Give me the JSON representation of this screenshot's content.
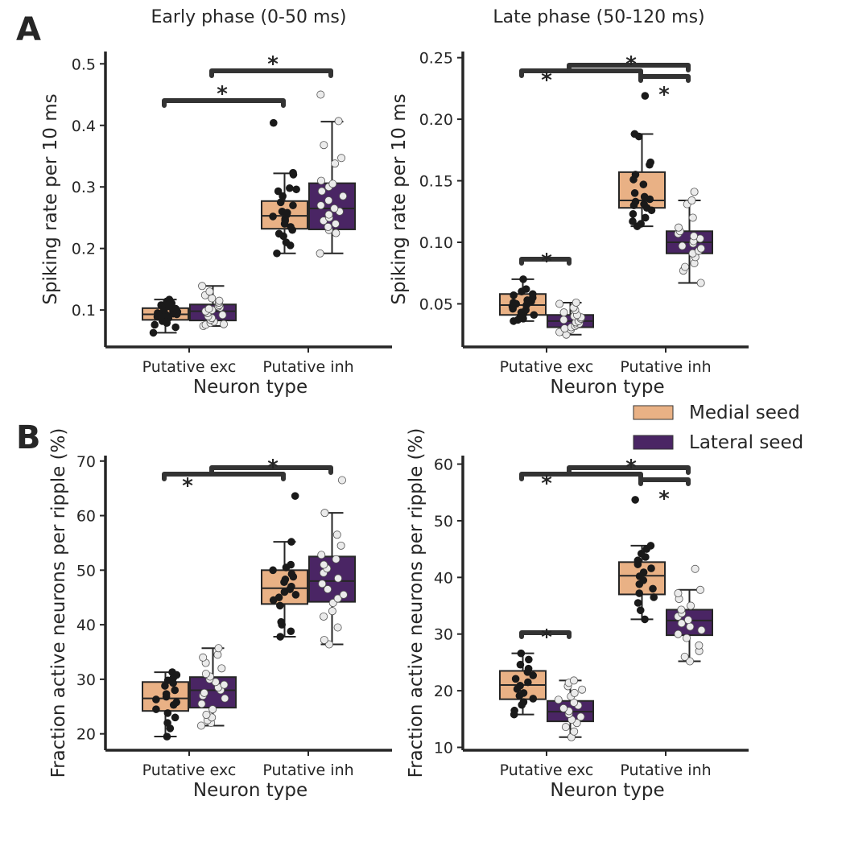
{
  "panel_letters": [
    "A",
    "B"
  ],
  "column_titles": [
    "Early phase (0-50 ms)",
    "Late phase (50-120 ms)"
  ],
  "legend": {
    "items": [
      {
        "label": "Medial seed",
        "color": "#E9B185"
      },
      {
        "label": "Lateral seed",
        "color": "#4A2564"
      }
    ],
    "placement": "right, between rows"
  },
  "colors": {
    "medial": "#E9B185",
    "lateral": "#4A2564",
    "bracket": "#333333"
  },
  "chart_data": [
    {
      "type": "box",
      "title": "Early phase (0-50 ms)",
      "xlabel": "Neuron type",
      "ylabel": "Spiking rate per 10 ms",
      "categories": [
        "Putative exc",
        "Putative inh"
      ],
      "ylim": [
        0.04,
        0.52
      ],
      "yticks": [
        0.1,
        0.2,
        0.3,
        0.4,
        0.5
      ],
      "ytick_labels": [
        "0.1",
        "0.2",
        "0.3",
        "0.4",
        "0.5"
      ],
      "series": [
        {
          "name": "Medial seed",
          "boxes": [
            {
              "whislo": 0.063,
              "q1": 0.084,
              "med": 0.093,
              "q3": 0.103,
              "whishi": 0.117,
              "points": [
                0.063,
                0.072,
                0.076,
                0.079,
                0.082,
                0.085,
                0.087,
                0.089,
                0.09,
                0.092,
                0.093,
                0.094,
                0.095,
                0.097,
                0.098,
                0.1,
                0.102,
                0.104,
                0.106,
                0.108,
                0.111,
                0.114,
                0.117
              ]
            },
            {
              "whislo": 0.192,
              "q1": 0.232,
              "med": 0.253,
              "q3": 0.277,
              "whishi": 0.322,
              "points": [
                0.192,
                0.205,
                0.21,
                0.22,
                0.224,
                0.23,
                0.235,
                0.24,
                0.245,
                0.248,
                0.252,
                0.255,
                0.258,
                0.26,
                0.27,
                0.275,
                0.285,
                0.293,
                0.296,
                0.298,
                0.32,
                0.323,
                0.404
              ]
            }
          ]
        },
        {
          "name": "Lateral seed",
          "boxes": [
            {
              "whislo": 0.074,
              "q1": 0.083,
              "med": 0.098,
              "q3": 0.109,
              "whishi": 0.139,
              "points": [
                0.074,
                0.076,
                0.077,
                0.079,
                0.081,
                0.084,
                0.087,
                0.09,
                0.092,
                0.095,
                0.098,
                0.1,
                0.102,
                0.104,
                0.106,
                0.108,
                0.112,
                0.115,
                0.119,
                0.124,
                0.13,
                0.139
              ]
            },
            {
              "whislo": 0.192,
              "q1": 0.231,
              "med": 0.265,
              "q3": 0.306,
              "whishi": 0.406,
              "points": [
                0.192,
                0.225,
                0.23,
                0.235,
                0.24,
                0.245,
                0.25,
                0.255,
                0.26,
                0.265,
                0.27,
                0.278,
                0.285,
                0.293,
                0.3,
                0.305,
                0.31,
                0.338,
                0.347,
                0.368,
                0.407,
                0.45
              ]
            }
          ]
        }
      ],
      "significance": [
        {
          "pair": "Medial exc vs Medial inh",
          "label": "*"
        },
        {
          "pair": "Lateral exc vs Lateral inh",
          "label": "*"
        }
      ]
    },
    {
      "type": "box",
      "title": "Late phase (50-120 ms)",
      "xlabel": "Neuron type",
      "ylabel": "Spiking rate per 10 ms",
      "categories": [
        "Putative exc",
        "Putative inh"
      ],
      "ylim": [
        0.015,
        0.255
      ],
      "yticks": [
        0.05,
        0.1,
        0.15,
        0.2,
        0.25
      ],
      "ytick_labels": [
        "0.05",
        "0.10",
        "0.15",
        "0.20",
        "0.25"
      ],
      "series": [
        {
          "name": "Medial seed",
          "boxes": [
            {
              "whislo": 0.036,
              "q1": 0.041,
              "med": 0.049,
              "q3": 0.058,
              "whishi": 0.07,
              "points": [
                0.036,
                0.037,
                0.038,
                0.04,
                0.041,
                0.042,
                0.043,
                0.045,
                0.046,
                0.047,
                0.048,
                0.049,
                0.05,
                0.051,
                0.052,
                0.053,
                0.055,
                0.057,
                0.058,
                0.06,
                0.062,
                0.07
              ]
            },
            {
              "whislo": 0.113,
              "q1": 0.128,
              "med": 0.134,
              "q3": 0.157,
              "whishi": 0.188,
              "points": [
                0.113,
                0.115,
                0.117,
                0.12,
                0.123,
                0.126,
                0.128,
                0.13,
                0.131,
                0.133,
                0.135,
                0.137,
                0.14,
                0.147,
                0.151,
                0.155,
                0.163,
                0.165,
                0.186,
                0.188,
                0.219
              ]
            }
          ]
        },
        {
          "name": "Lateral seed",
          "boxes": [
            {
              "whislo": 0.025,
              "q1": 0.031,
              "med": 0.036,
              "q3": 0.041,
              "whishi": 0.051,
              "points": [
                0.025,
                0.027,
                0.029,
                0.03,
                0.031,
                0.032,
                0.033,
                0.034,
                0.035,
                0.036,
                0.037,
                0.038,
                0.039,
                0.04,
                0.041,
                0.043,
                0.045,
                0.047,
                0.05,
                0.051
              ]
            },
            {
              "whislo": 0.067,
              "q1": 0.091,
              "med": 0.1,
              "q3": 0.109,
              "whishi": 0.134,
              "points": [
                0.067,
                0.077,
                0.08,
                0.083,
                0.088,
                0.091,
                0.093,
                0.095,
                0.097,
                0.099,
                0.101,
                0.103,
                0.105,
                0.107,
                0.109,
                0.112,
                0.12,
                0.131,
                0.134,
                0.141
              ]
            }
          ]
        }
      ],
      "significance": [
        {
          "pair": "Medial exc vs Lateral exc",
          "label": "*"
        },
        {
          "pair": "Medial exc vs Medial inh",
          "label": "*"
        },
        {
          "pair": "Medial inh vs Lateral inh",
          "label": "*"
        },
        {
          "pair": "Lateral exc vs Lateral inh",
          "label": "*"
        }
      ]
    },
    {
      "type": "box",
      "title": "",
      "xlabel": "Neuron type",
      "ylabel": "Fraction active neurons per ripple (%)",
      "categories": [
        "Putative exc",
        "Putative inh"
      ],
      "ylim": [
        17,
        71
      ],
      "yticks": [
        20,
        30,
        40,
        50,
        60,
        70
      ],
      "ytick_labels": [
        "20",
        "30",
        "40",
        "50",
        "60",
        "70"
      ],
      "series": [
        {
          "name": "Medial seed",
          "boxes": [
            {
              "whislo": 19.5,
              "q1": 24.2,
              "med": 26.5,
              "q3": 29.5,
              "whishi": 31.3,
              "points": [
                19.5,
                21,
                22,
                23,
                23.8,
                24.5,
                25.3,
                25.8,
                26.3,
                26.8,
                27.3,
                28,
                28.8,
                29.3,
                29.8,
                30.3,
                30.8,
                31.3
              ]
            },
            {
              "whislo": 37.8,
              "q1": 43.8,
              "med": 46.7,
              "q3": 50,
              "whishi": 55.2,
              "points": [
                37.8,
                38.8,
                40,
                40.5,
                43.5,
                44.5,
                45,
                45.5,
                46,
                46.5,
                47,
                47.8,
                48.3,
                48.8,
                49.3,
                50,
                50.5,
                51,
                55.2,
                63.6
              ]
            }
          ]
        },
        {
          "name": "Lateral seed",
          "boxes": [
            {
              "whislo": 21.5,
              "q1": 24.8,
              "med": 28,
              "q3": 30.4,
              "whishi": 35.7,
              "points": [
                21.5,
                22,
                22.5,
                23,
                23.5,
                24.5,
                25.5,
                26.5,
                27,
                27.5,
                28,
                28.5,
                29,
                29.5,
                30,
                30.5,
                31,
                32,
                33,
                34,
                34.5,
                35.7
              ]
            },
            {
              "whislo": 36.4,
              "q1": 44.2,
              "med": 48,
              "q3": 52.5,
              "whishi": 60.5,
              "points": [
                36.4,
                37.2,
                39.5,
                41.5,
                42.5,
                44,
                44.8,
                45.5,
                46.5,
                47.5,
                48.5,
                49.5,
                50.3,
                51,
                52,
                52.8,
                54.5,
                56.5,
                60.5,
                66.5
              ]
            }
          ]
        }
      ],
      "significance": [
        {
          "pair": "Medial exc vs Medial inh",
          "label": "*"
        },
        {
          "pair": "Lateral exc vs Lateral inh",
          "label": "*"
        }
      ]
    },
    {
      "type": "box",
      "title": "",
      "xlabel": "Neuron type",
      "ylabel": "Fraction active neurons per ripple (%)",
      "categories": [
        "Putative exc",
        "Putative inh"
      ],
      "ylim": [
        9.5,
        61.5
      ],
      "yticks": [
        10,
        20,
        30,
        40,
        50,
        60
      ],
      "ytick_labels": [
        "10",
        "20",
        "30",
        "40",
        "50",
        "60"
      ],
      "series": [
        {
          "name": "Medial seed",
          "boxes": [
            {
              "whislo": 15.8,
              "q1": 18.5,
              "med": 21,
              "q3": 23.5,
              "whishi": 26.6,
              "points": [
                15.8,
                16.5,
                17.5,
                18,
                18.6,
                19.1,
                19.6,
                20.3,
                20.9,
                21.5,
                22.1,
                22.7,
                23.3,
                23.9,
                24.6,
                25.5,
                26.6
              ]
            },
            {
              "whislo": 32.6,
              "q1": 37,
              "med": 40.3,
              "q3": 42.7,
              "whishi": 45.6,
              "points": [
                32.6,
                34.2,
                35.5,
                36.5,
                37.2,
                38,
                38.8,
                39.5,
                40.2,
                40.9,
                41.6,
                42.3,
                43,
                43.6,
                44.2,
                45,
                45.6,
                53.7
              ]
            }
          ]
        },
        {
          "name": "Lateral seed",
          "boxes": [
            {
              "whislo": 11.8,
              "q1": 14.6,
              "med": 16.3,
              "q3": 18.2,
              "whishi": 21.8,
              "points": [
                11.8,
                12.8,
                13.6,
                14.3,
                14.9,
                15.4,
                15.9,
                16.4,
                16.9,
                17.4,
                17.9,
                18.4,
                19,
                19.6,
                20.2,
                20.8,
                21.4,
                21.8
              ]
            },
            {
              "whislo": 25.2,
              "q1": 29.8,
              "med": 32.4,
              "q3": 34.3,
              "whishi": 37.8,
              "points": [
                25.2,
                26,
                27,
                28,
                29.3,
                30,
                30.7,
                31.3,
                31.9,
                32.5,
                33.1,
                33.7,
                34.3,
                35,
                36.2,
                37.2,
                37.8,
                41.5
              ]
            }
          ]
        }
      ],
      "significance": [
        {
          "pair": "Medial exc vs Lateral exc",
          "label": "*"
        },
        {
          "pair": "Medial exc vs Medial inh",
          "label": "*"
        },
        {
          "pair": "Medial inh vs Lateral inh",
          "label": "*"
        },
        {
          "pair": "Lateral exc vs Lateral inh",
          "label": "*"
        }
      ]
    }
  ]
}
